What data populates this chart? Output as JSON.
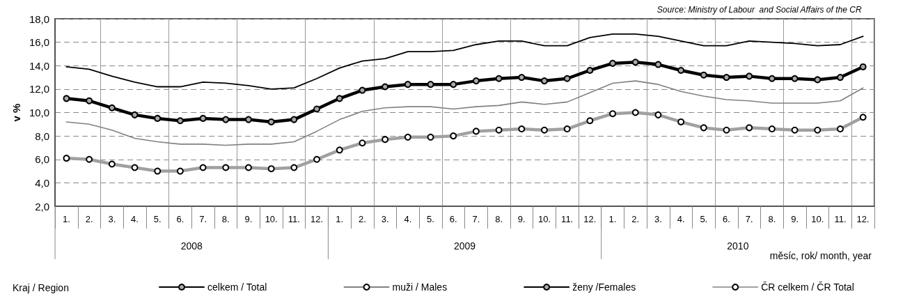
{
  "chart_data": {
    "type": "line",
    "ylabel": "v %",
    "xlabel": "měsíc, rok/ month, year",
    "legend_title": "Kraj / Region",
    "annotations": [
      "Source: Ministry of Labour  and Social Affairs of the CR",
      "2008",
      "2009",
      "2010"
    ],
    "categories": [
      "1.",
      "2.",
      "3.",
      "4.",
      "5.",
      "6.",
      "7.",
      "8.",
      "9.",
      "10.",
      "11.",
      "12.",
      "1.",
      "2.",
      "3.",
      "4.",
      "5.",
      "6.",
      "7.",
      "8.",
      "9.",
      "10.",
      "11.",
      "12.",
      "1.",
      "2.",
      "3.",
      "4.",
      "5.",
      "6.",
      "7.",
      "8.",
      "9.",
      "10.",
      "11.",
      "12."
    ],
    "series": [
      {
        "name": "celkem / Total",
        "color": "#000000",
        "marker": "circle",
        "values": [
          11.2,
          11.0,
          10.4,
          9.8,
          9.5,
          9.3,
          9.5,
          9.4,
          9.4,
          9.2,
          9.4,
          10.3,
          11.2,
          11.9,
          12.2,
          12.4,
          12.4,
          12.4,
          12.7,
          12.9,
          13.0,
          12.7,
          12.9,
          13.6,
          14.2,
          14.3,
          14.1,
          13.6,
          13.2,
          13.0,
          13.1,
          12.9,
          12.9,
          12.8,
          13.0,
          13.9
        ]
      },
      {
        "name": "muži / Males",
        "color": "#808080",
        "marker": "none",
        "values": [
          9.2,
          9.0,
          8.5,
          7.8,
          7.5,
          7.3,
          7.3,
          7.2,
          7.3,
          7.3,
          7.5,
          8.4,
          9.4,
          10.1,
          10.4,
          10.5,
          10.5,
          10.3,
          10.5,
          10.6,
          10.9,
          10.7,
          10.9,
          11.7,
          12.5,
          12.7,
          12.4,
          11.8,
          11.4,
          11.1,
          11.0,
          10.8,
          10.8,
          10.8,
          11.0,
          12.1
        ]
      },
      {
        "name": "ženy /Females",
        "color": "#000000",
        "marker": "none",
        "values": [
          13.9,
          13.7,
          13.1,
          12.6,
          12.2,
          12.2,
          12.6,
          12.5,
          12.3,
          12.0,
          12.1,
          12.9,
          13.8,
          14.4,
          14.6,
          15.2,
          15.2,
          15.3,
          15.8,
          16.1,
          16.1,
          15.7,
          15.7,
          16.4,
          16.7,
          16.7,
          16.5,
          16.1,
          15.7,
          15.7,
          16.1,
          16.0,
          15.9,
          15.7,
          15.8,
          16.5
        ]
      },
      {
        "name": "ČR celkem / ČR Total",
        "color": "#a0a0a0",
        "marker": "circle",
        "values": [
          6.1,
          6.0,
          5.6,
          5.3,
          5.0,
          5.0,
          5.3,
          5.3,
          5.3,
          5.2,
          5.3,
          6.0,
          6.8,
          7.4,
          7.7,
          7.9,
          7.9,
          8.0,
          8.4,
          8.5,
          8.6,
          8.5,
          8.6,
          9.3,
          9.9,
          10.0,
          9.8,
          9.2,
          8.7,
          8.5,
          8.7,
          8.6,
          8.5,
          8.5,
          8.6,
          9.6
        ]
      }
    ],
    "ylim": [
      2,
      18
    ],
    "yticks": [
      {
        "value": 2,
        "label": "2,0"
      },
      {
        "value": 4,
        "label": "4,0"
      },
      {
        "value": 6,
        "label": "6,0"
      },
      {
        "value": 8,
        "label": "8,0"
      },
      {
        "value": 10,
        "label": "10,0"
      },
      {
        "value": 12,
        "label": "12,0"
      },
      {
        "value": 14,
        "label": "14,0"
      },
      {
        "value": 16,
        "label": "16,0"
      },
      {
        "value": 18,
        "label": "18,0"
      }
    ],
    "grid": true,
    "legend": "bottom"
  }
}
